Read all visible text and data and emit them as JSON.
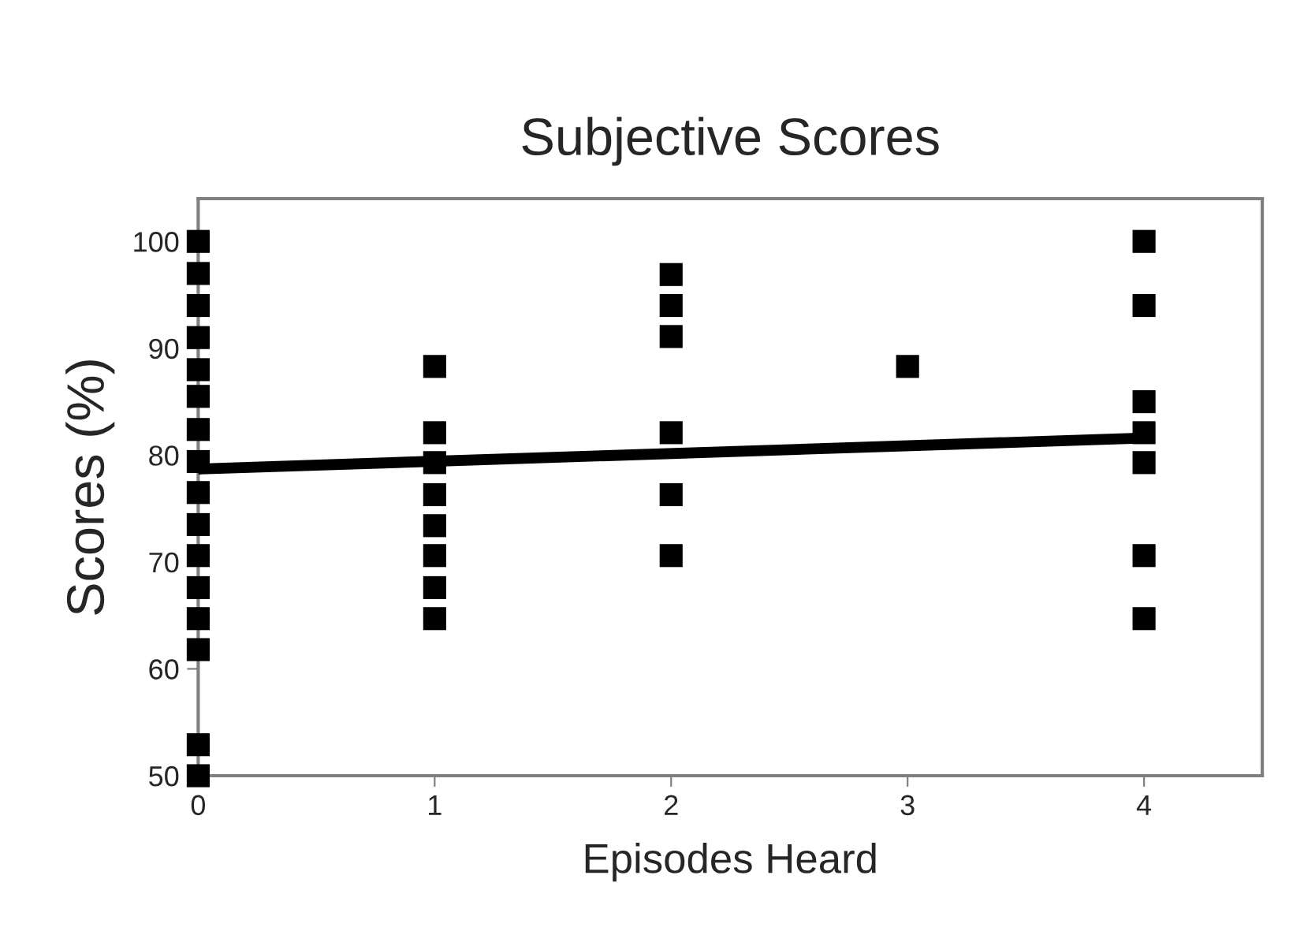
{
  "chart_data": {
    "type": "scatter",
    "title": "Subjective Scores",
    "xlabel": "Episodes Heard",
    "ylabel": "Scores (%)",
    "xlim": [
      0,
      4.5
    ],
    "xticks": [
      0,
      1,
      2,
      3,
      4
    ],
    "ylim": [
      50,
      104
    ],
    "yticks": [
      50,
      60,
      70,
      80,
      90,
      100
    ],
    "grid": false,
    "legend": false,
    "series": [
      {
        "marker": "square",
        "color": "#000000",
        "x": [
          0,
          0,
          0,
          0,
          0,
          0,
          0,
          0,
          0,
          0,
          0,
          0,
          0,
          0,
          0,
          0,
          1,
          1,
          1,
          1,
          1,
          1,
          1,
          1,
          2,
          2,
          2,
          2,
          2,
          2,
          3,
          4,
          4,
          4,
          4,
          4,
          4,
          4
        ],
        "values": [
          100,
          97,
          94,
          91,
          88,
          85.5,
          82.4,
          79.4,
          76.5,
          73.5,
          70.6,
          67.6,
          64.7,
          61.8,
          52.9,
          50,
          88.3,
          82.1,
          79.3,
          76.3,
          73.4,
          70.6,
          67.6,
          64.7,
          96.9,
          94,
          91.1,
          82.1,
          76.3,
          70.6,
          88.3,
          100,
          94,
          85,
          82.1,
          79.3,
          70.6,
          64.7
        ]
      },
      {
        "type": "line",
        "marker": "none",
        "color": "#000000",
        "x": [
          0,
          4
        ],
        "values": [
          78.7,
          81.6
        ]
      }
    ]
  }
}
